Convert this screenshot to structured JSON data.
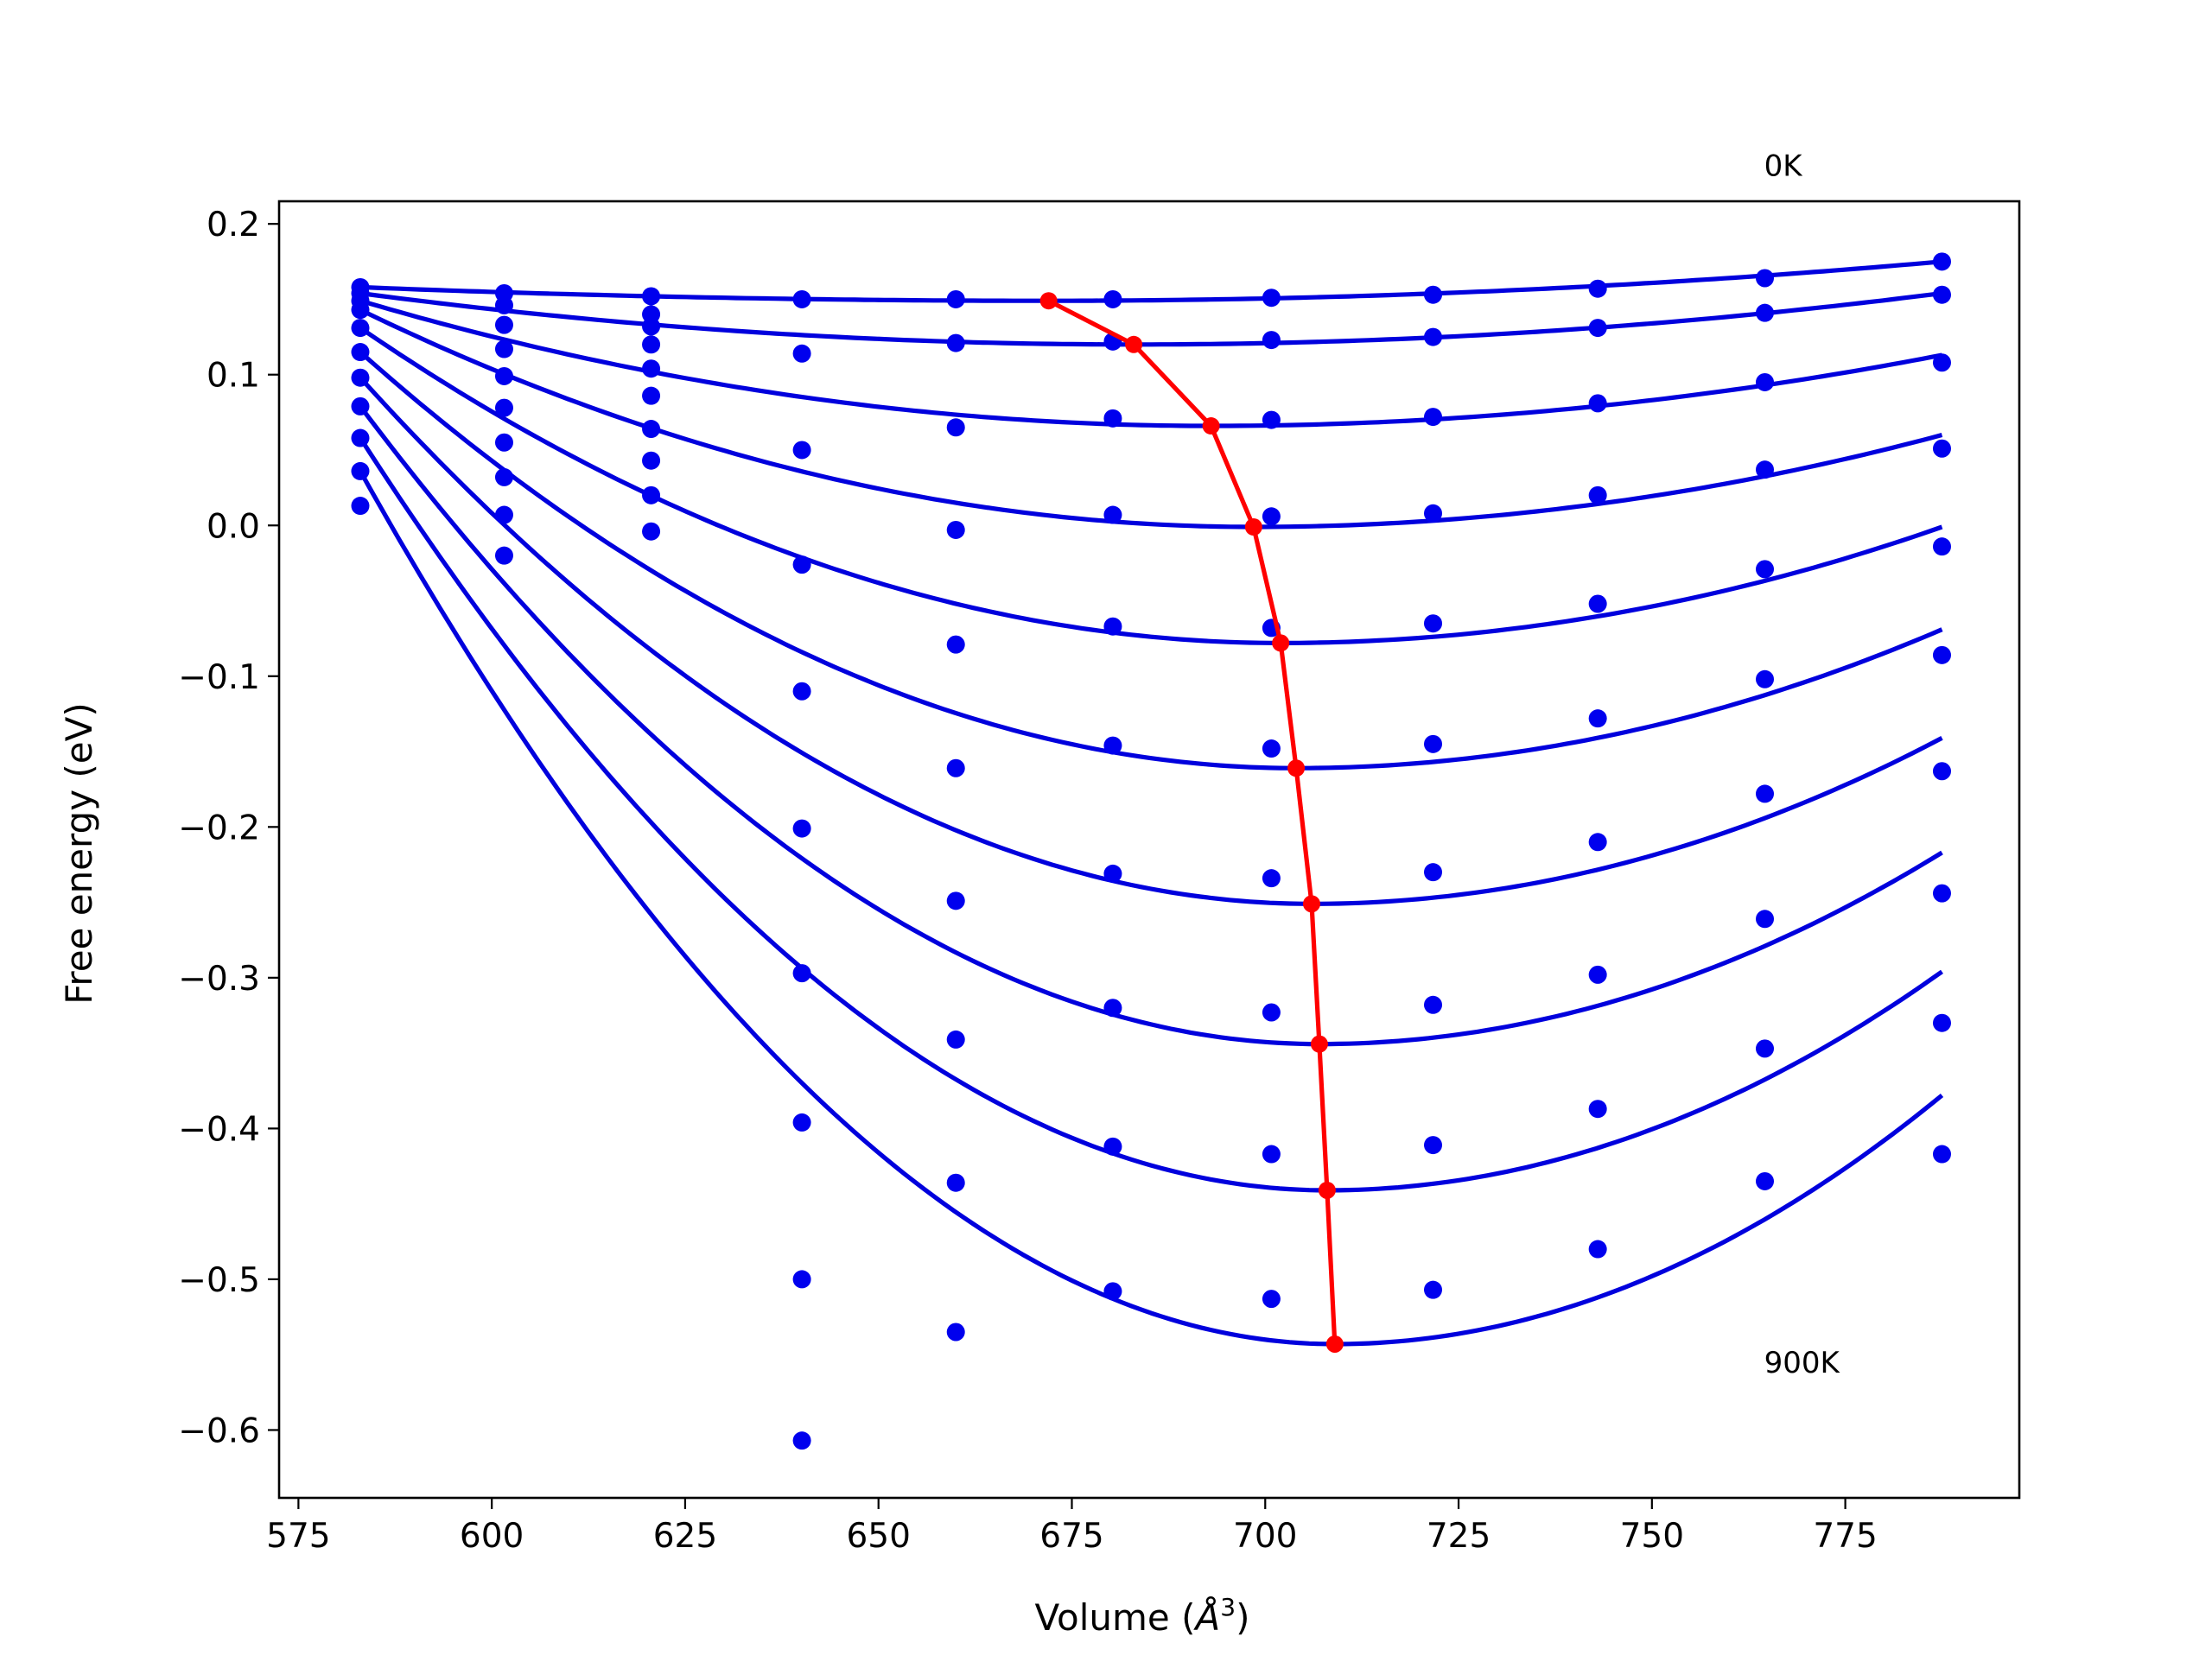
{
  "chart_data": {
    "type": "line",
    "title": "",
    "xlabel": "Volume (",
    "xlabel_symbol": "Å",
    "xlabel_exponent": "3",
    "xlabel_close": ")",
    "ylabel": "Free energy (eV)",
    "xlim": [
      572.5,
      797.5
    ],
    "ylim": [
      -0.645,
      0.215
    ],
    "xticks": [
      575,
      600,
      625,
      650,
      675,
      700,
      725,
      750,
      775
    ],
    "yticks": [
      0.2,
      0.1,
      0.0,
      -0.1,
      -0.2,
      -0.3,
      -0.4,
      -0.5,
      -0.6
    ],
    "xtick_labels": [
      "575",
      "600",
      "625",
      "650",
      "675",
      "700",
      "725",
      "750",
      "775"
    ],
    "ytick_labels": [
      "0.2",
      "0.1",
      "0.0",
      "−0.1",
      "−0.2",
      "−0.3",
      "−0.4",
      "−0.5",
      "−0.6"
    ],
    "grid": false,
    "legend": "none",
    "colors": {
      "fit_curves": "#0000dd",
      "data_points": "#0000ee",
      "minimum_path": "#ff0000",
      "axes": "#000000",
      "background": "#ffffff"
    },
    "annotations": [
      {
        "text": "0K",
        "x": 764.5,
        "y": 0.232
      },
      {
        "text": "900K",
        "x": 764.5,
        "y": -0.562
      }
    ],
    "volumes": [
      583,
      601.6,
      620.6,
      640.1,
      660,
      680.3,
      700.8,
      721.7,
      743,
      764.6,
      787.5
    ],
    "series": [
      {
        "values": [
          0.158,
          0.154,
          0.152,
          0.15,
          0.15,
          0.15,
          0.151,
          0.153,
          0.157,
          0.164,
          0.175
        ],
        "fit_min": [
          672,
          0.149
        ],
        "fit_left": 0.158,
        "fit_right": 0.175
      },
      {
        "values": [
          0.154,
          0.146,
          0.14,
          0.114,
          0.121,
          0.122,
          0.123,
          0.125,
          0.131,
          0.141,
          0.153
        ],
        "fit_min": [
          683,
          0.12
        ],
        "fit_right": 0.154
      },
      {
        "values": [
          0.149,
          0.133,
          0.132,
          0.05,
          0.065,
          0.071,
          0.07,
          0.072,
          0.081,
          0.095,
          0.108
        ],
        "fit_min": [
          693,
          0.066
        ],
        "fit_right": 0.113
      },
      {
        "values": [
          0.143,
          0.117,
          0.12,
          -0.026,
          -0.003,
          0.007,
          0.006,
          0.008,
          0.02,
          0.037,
          0.051
        ],
        "fit_min": [
          698.5,
          -0.001
        ],
        "fit_right": 0.06
      },
      {
        "values": [
          0.131,
          0.099,
          0.104,
          -0.11,
          -0.079,
          -0.067,
          -0.068,
          -0.065,
          -0.052,
          -0.029,
          -0.014
        ],
        "fit_min": [
          702,
          -0.078
        ],
        "fit_right": -0.001
      },
      {
        "values": [
          0.115,
          0.078,
          0.086,
          -0.201,
          -0.161,
          -0.146,
          -0.148,
          -0.145,
          -0.128,
          -0.102,
          -0.086
        ],
        "fit_min": [
          704,
          -0.161
        ],
        "fit_right": -0.069
      },
      {
        "values": [
          0.098,
          0.055,
          0.064,
          -0.297,
          -0.249,
          -0.231,
          -0.234,
          -0.23,
          -0.21,
          -0.178,
          -0.163
        ],
        "fit_min": [
          706,
          -0.251
        ],
        "fit_right": -0.141
      },
      {
        "values": [
          0.079,
          0.032,
          0.043,
          -0.396,
          -0.341,
          -0.32,
          -0.323,
          -0.318,
          -0.298,
          -0.261,
          -0.244
        ],
        "fit_min": [
          707,
          -0.344
        ],
        "fit_right": -0.217
      },
      {
        "values": [
          0.058,
          0.007,
          0.02,
          -0.5,
          -0.436,
          -0.412,
          -0.417,
          -0.411,
          -0.387,
          -0.347,
          -0.33
        ],
        "fit_min": [
          708,
          -0.441
        ],
        "fit_right": -0.296
      },
      {
        "values": [
          0.036,
          -0.02,
          -0.004,
          -0.607,
          -0.535,
          -0.508,
          -0.513,
          -0.507,
          -0.48,
          -0.435,
          -0.417
        ],
        "fit_min": [
          709,
          -0.543
        ],
        "fit_right": -0.378
      }
    ],
    "extra_points": [
      [
        583,
        0.013
      ]
    ],
    "minimum_path": {
      "x": [
        672,
        683,
        693,
        698.5,
        702,
        704,
        706,
        707,
        708,
        709
      ],
      "y": [
        0.149,
        0.12,
        0.066,
        -0.001,
        -0.078,
        -0.161,
        -0.251,
        -0.344,
        -0.441,
        -0.543
      ]
    }
  }
}
